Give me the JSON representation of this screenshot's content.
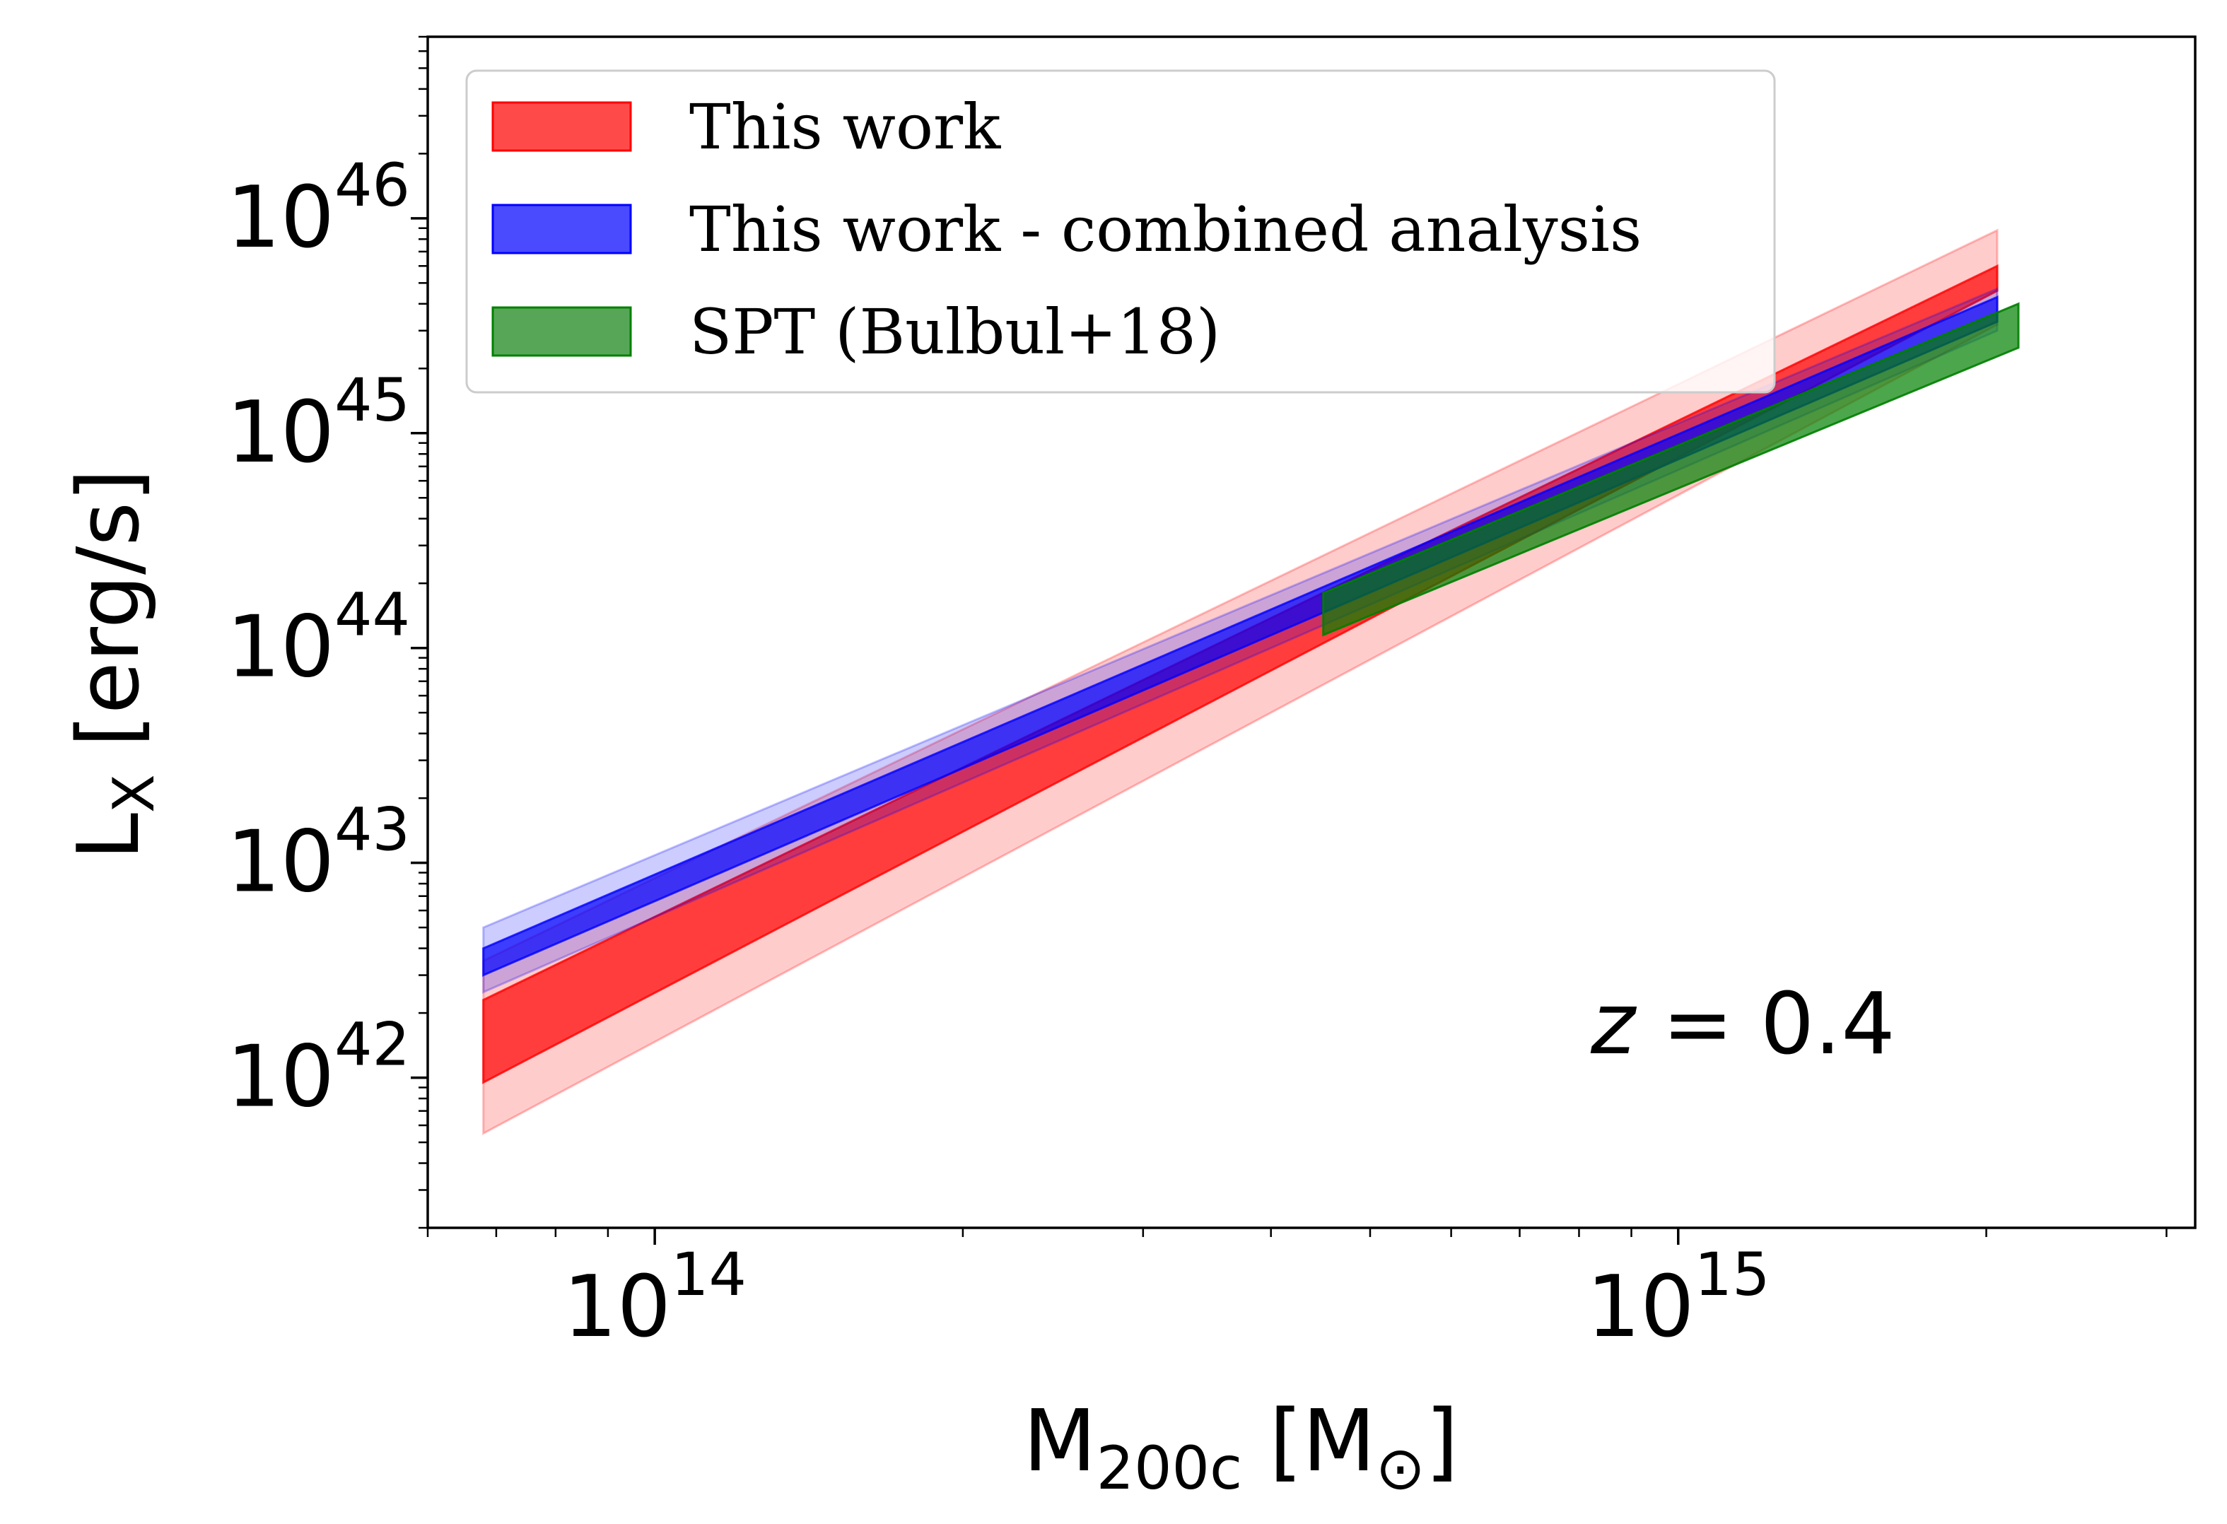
{
  "chart_data": {
    "type": "area",
    "x_scale": "log",
    "y_scale": "log",
    "xlim": [
      60000000000000,
      3200000000000000
    ],
    "ylim": [
      2e+41,
      7e+46
    ],
    "xlabel": {
      "main": "M",
      "sub": "200c",
      "open": " [M",
      "sun_sub": "⊙",
      "close": "]"
    },
    "ylabel": {
      "main": "L",
      "sub": "X",
      "rest": " [erg/s]"
    },
    "x_ticks": [
      {
        "value": 100000000000000,
        "base": "10",
        "exp": "14"
      },
      {
        "value": 1000000000000000,
        "base": "10",
        "exp": "15"
      }
    ],
    "y_ticks": [
      {
        "value": 1e+42,
        "base": "10",
        "exp": "42"
      },
      {
        "value": 1e+43,
        "base": "10",
        "exp": "43"
      },
      {
        "value": 1e+44,
        "base": "10",
        "exp": "44"
      },
      {
        "value": 1e+45,
        "base": "10",
        "exp": "45"
      },
      {
        "value": 1e+46,
        "base": "10",
        "exp": "46"
      }
    ],
    "annotation": {
      "var": "z",
      "eq": " = 0.4"
    },
    "legend": {
      "position": "upper-left",
      "entries": [
        {
          "label": "This work",
          "color": "#ff2a2a",
          "edge": "#ff0000"
        },
        {
          "label": "This work - combined analysis",
          "color": "#2a2aff",
          "edge": "#0000ff"
        },
        {
          "label": "SPT (Bulbul+18)",
          "color": "#3a963a",
          "edge": "#008000"
        }
      ]
    },
    "series": [
      {
        "name": "This work",
        "color": "#ff0000",
        "x": [
          68000000000000,
          2050000000000000
        ],
        "inner_band": {
          "lower": [
            9.5e+41,
            4.6e+45
          ],
          "upper": [
            2.3e+42,
            6e+45
          ]
        },
        "outer_band": {
          "lower": [
            5.5e+41,
            3.2e+45
          ],
          "upper": [
            3.5e+42,
            8.8e+45
          ]
        }
      },
      {
        "name": "This work - combined analysis",
        "color": "#0000ff",
        "x": [
          68000000000000,
          2050000000000000
        ],
        "inner_band": {
          "lower": [
            3e+42,
            3.3e+45
          ],
          "upper": [
            4e+42,
            4.3e+45
          ]
        },
        "outer_band": {
          "lower": [
            2.5e+42,
            3e+45
          ],
          "upper": [
            5e+42,
            4.7e+45
          ]
        }
      },
      {
        "name": "SPT (Bulbul+18)",
        "color": "#008000",
        "x": [
          450000000000000,
          2150000000000000
        ],
        "inner_band": {
          "lower": [
            1.15e+44,
            2.5e+45
          ],
          "upper": [
            1.8e+44,
            4e+45
          ]
        }
      }
    ]
  }
}
